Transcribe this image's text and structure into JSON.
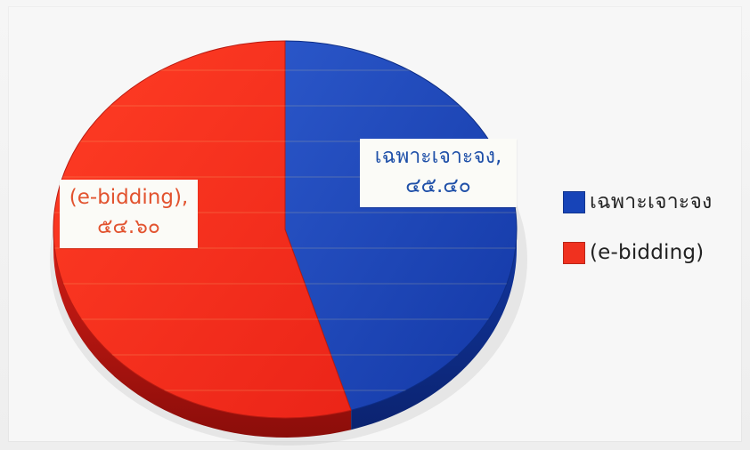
{
  "chart_data": {
    "type": "pie",
    "title": "",
    "labels": [
      "เฉพาะเจาะจง",
      "(e-bidding)"
    ],
    "values": [
      45.4,
      54.6
    ],
    "display_values": [
      "๔๕.๔๐",
      "๕๔.๖๐"
    ],
    "colors": [
      "#1744b8",
      "#f0311f"
    ],
    "legend_position": "right",
    "pie_3d": true
  },
  "labels": {
    "blue_name": "เฉพาะเจาะจง,",
    "blue_value": "๔๕.๔๐",
    "red_name": "(e-bidding),",
    "red_value": "๕๔.๖๐"
  },
  "legend": [
    {
      "label": "เฉพาะเจาะจง",
      "color": "#1744b8"
    },
    {
      "label": "(e-bidding)",
      "color": "#f0311f"
    }
  ]
}
